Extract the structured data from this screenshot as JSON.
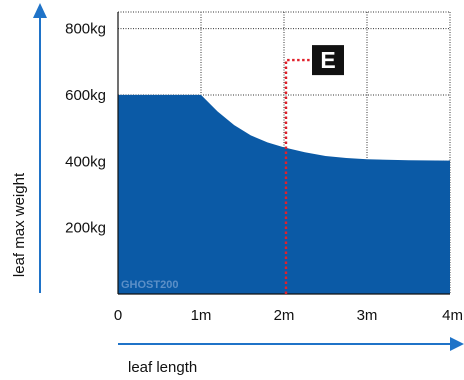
{
  "chart_data": {
    "type": "area",
    "x_unit": "m",
    "y_unit": "kg",
    "xlim": [
      0,
      4
    ],
    "ylim": [
      0,
      850
    ],
    "grid": true,
    "xlabel": "leaf length",
    "ylabel": "leaf max weight",
    "x_ticks": [
      "0",
      "1m",
      "2m",
      "3m",
      "4m"
    ],
    "y_ticks": [
      {
        "value": 200,
        "label": "200kg"
      },
      {
        "value": 400,
        "label": "400kg"
      },
      {
        "value": 600,
        "label": "600kg"
      },
      {
        "value": 800,
        "label": "800kg"
      }
    ],
    "series": [
      {
        "color": "#0b5aa6",
        "x": [
          0,
          1,
          1.2,
          1.4,
          1.6,
          1.8,
          2,
          2.25,
          2.5,
          2.75,
          3,
          3.5,
          4
        ],
        "y": [
          600,
          600,
          550,
          509,
          478,
          457,
          442,
          427,
          416,
          410,
          406,
          403,
          402
        ]
      }
    ],
    "annotation": {
      "label": "E",
      "x": 2,
      "marker_y": 705,
      "line_color": "#e0202a",
      "badge_color": "#111111"
    },
    "watermark": "GHOST200",
    "watermark_color": "#5b8fc7",
    "axis_arrow_color": "#1f73c8"
  }
}
